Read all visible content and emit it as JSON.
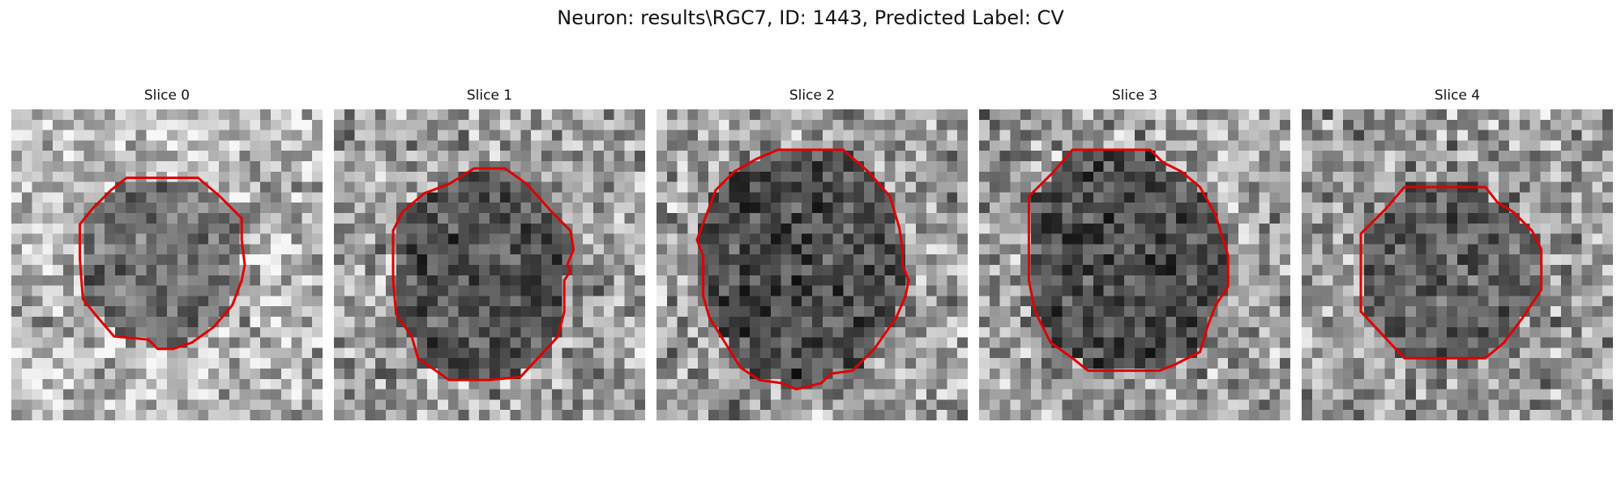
{
  "figure": {
    "title": "Neuron: results\\RGC7, ID: 1443, Predicted Label: CV",
    "outline_color": "#e00000"
  },
  "panels": [
    {
      "title": "Slice 0",
      "core_darkness": 0.45,
      "surround_brightness": 0.72,
      "outline": [
        [
          0.37,
          0.22
        ],
        [
          0.6,
          0.22
        ],
        [
          0.67,
          0.28
        ],
        [
          0.74,
          0.35
        ],
        [
          0.74,
          0.42
        ],
        [
          0.75,
          0.5
        ],
        [
          0.74,
          0.55
        ],
        [
          0.71,
          0.63
        ],
        [
          0.65,
          0.7
        ],
        [
          0.58,
          0.75
        ],
        [
          0.52,
          0.77
        ],
        [
          0.47,
          0.77
        ],
        [
          0.44,
          0.74
        ],
        [
          0.33,
          0.73
        ],
        [
          0.27,
          0.66
        ],
        [
          0.23,
          0.61
        ],
        [
          0.22,
          0.48
        ],
        [
          0.22,
          0.37
        ],
        [
          0.26,
          0.32
        ],
        [
          0.32,
          0.26
        ]
      ]
    },
    {
      "title": "Slice 1",
      "core_darkness": 0.32,
      "surround_brightness": 0.62,
      "outline": [
        [
          0.45,
          0.19
        ],
        [
          0.55,
          0.19
        ],
        [
          0.62,
          0.24
        ],
        [
          0.7,
          0.33
        ],
        [
          0.76,
          0.39
        ],
        [
          0.77,
          0.45
        ],
        [
          0.75,
          0.5
        ],
        [
          0.76,
          0.52
        ],
        [
          0.74,
          0.55
        ],
        [
          0.74,
          0.65
        ],
        [
          0.72,
          0.73
        ],
        [
          0.6,
          0.86
        ],
        [
          0.5,
          0.87
        ],
        [
          0.37,
          0.87
        ],
        [
          0.27,
          0.8
        ],
        [
          0.25,
          0.73
        ],
        [
          0.2,
          0.66
        ],
        [
          0.19,
          0.55
        ],
        [
          0.19,
          0.39
        ],
        [
          0.22,
          0.33
        ],
        [
          0.29,
          0.27
        ],
        [
          0.37,
          0.24
        ]
      ]
    },
    {
      "title": "Slice 2",
      "core_darkness": 0.3,
      "surround_brightness": 0.62,
      "outline": [
        [
          0.39,
          0.13
        ],
        [
          0.6,
          0.13
        ],
        [
          0.68,
          0.2
        ],
        [
          0.75,
          0.28
        ],
        [
          0.78,
          0.38
        ],
        [
          0.79,
          0.45
        ],
        [
          0.79,
          0.5
        ],
        [
          0.81,
          0.55
        ],
        [
          0.8,
          0.6
        ],
        [
          0.77,
          0.67
        ],
        [
          0.7,
          0.77
        ],
        [
          0.63,
          0.84
        ],
        [
          0.56,
          0.85
        ],
        [
          0.53,
          0.88
        ],
        [
          0.45,
          0.9
        ],
        [
          0.4,
          0.88
        ],
        [
          0.33,
          0.87
        ],
        [
          0.27,
          0.83
        ],
        [
          0.22,
          0.75
        ],
        [
          0.17,
          0.67
        ],
        [
          0.15,
          0.6
        ],
        [
          0.15,
          0.47
        ],
        [
          0.13,
          0.42
        ],
        [
          0.16,
          0.34
        ],
        [
          0.19,
          0.26
        ],
        [
          0.25,
          0.2
        ],
        [
          0.32,
          0.16
        ]
      ]
    },
    {
      "title": "Slice 3",
      "core_darkness": 0.3,
      "surround_brightness": 0.62,
      "outline": [
        [
          0.3,
          0.13
        ],
        [
          0.55,
          0.13
        ],
        [
          0.59,
          0.17
        ],
        [
          0.65,
          0.2
        ],
        [
          0.71,
          0.25
        ],
        [
          0.76,
          0.34
        ],
        [
          0.8,
          0.47
        ],
        [
          0.8,
          0.57
        ],
        [
          0.76,
          0.63
        ],
        [
          0.73,
          0.71
        ],
        [
          0.71,
          0.78
        ],
        [
          0.63,
          0.82
        ],
        [
          0.58,
          0.84
        ],
        [
          0.35,
          0.84
        ],
        [
          0.3,
          0.8
        ],
        [
          0.23,
          0.75
        ],
        [
          0.18,
          0.65
        ],
        [
          0.16,
          0.55
        ],
        [
          0.16,
          0.28
        ],
        [
          0.24,
          0.2
        ]
      ]
    },
    {
      "title": "Slice 4",
      "core_darkness": 0.38,
      "surround_brightness": 0.6,
      "outline": [
        [
          0.33,
          0.25
        ],
        [
          0.59,
          0.25
        ],
        [
          0.63,
          0.3
        ],
        [
          0.68,
          0.33
        ],
        [
          0.74,
          0.39
        ],
        [
          0.77,
          0.45
        ],
        [
          0.77,
          0.58
        ],
        [
          0.71,
          0.67
        ],
        [
          0.65,
          0.75
        ],
        [
          0.59,
          0.8
        ],
        [
          0.52,
          0.8
        ],
        [
          0.33,
          0.8
        ],
        [
          0.19,
          0.65
        ],
        [
          0.19,
          0.4
        ],
        [
          0.27,
          0.32
        ]
      ]
    }
  ]
}
